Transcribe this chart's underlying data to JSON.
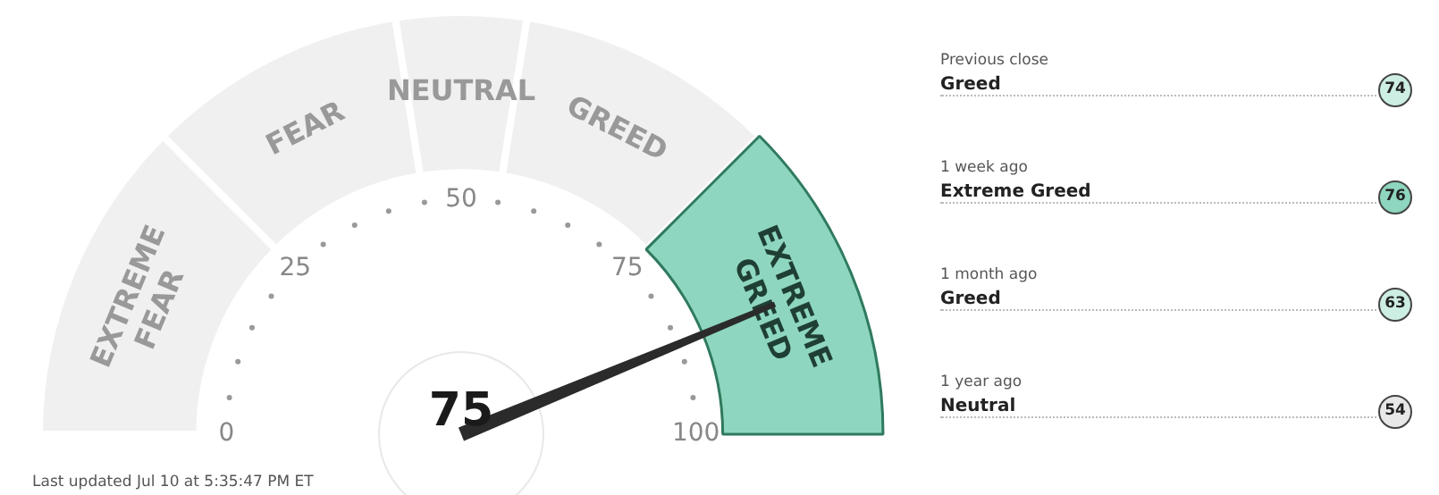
{
  "chart_data": [
    {
      "type": "donut",
      "categories": [
        "EXTREME FEAR",
        "FEAR",
        "NEUTRAL",
        "GREED",
        "EXTREME GREED"
      ],
      "values": [
        25,
        20,
        10,
        20,
        25
      ],
      "colors": [
        "#f0f0f0",
        "#f0f0f0",
        "#f0f0f0",
        "#f0f0f0",
        "#8ed6bf"
      ],
      "needle": "EXTREME GREED",
      "annotations": [
        "0",
        "25",
        "50",
        "75",
        "100",
        "75",
        "Last updated Jul 10 at 5:35:47 PM ET"
      ]
    },
    {
      "type": "other",
      "annotations": [
        "Previous close",
        "1 week ago",
        "1 month ago",
        "1 year ago"
      ],
      "categories": [
        "Greed",
        "Extreme Greed",
        "Greed",
        "Neutral"
      ],
      "values": [
        74,
        76,
        63,
        54
      ],
      "data_labels": true,
      "colors": [
        "#cdeee2",
        "#8ed6bf",
        "#cdeee2",
        "#e8e8e8"
      ]
    }
  ]
}
